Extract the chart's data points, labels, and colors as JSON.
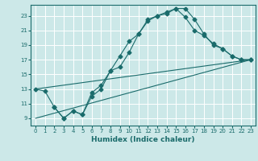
{
  "xlabel": "Humidex (Indice chaleur)",
  "bg_color": "#cce8e8",
  "grid_color": "#ffffff",
  "line_color": "#1a6b6b",
  "xlim": [
    -0.5,
    23.5
  ],
  "ylim": [
    8.0,
    24.5
  ],
  "xticks": [
    0,
    1,
    2,
    3,
    4,
    5,
    6,
    7,
    8,
    9,
    10,
    11,
    12,
    13,
    14,
    15,
    16,
    17,
    18,
    19,
    20,
    21,
    22,
    23
  ],
  "yticks": [
    9,
    11,
    13,
    15,
    17,
    19,
    21,
    23
  ],
  "line1_x": [
    0,
    1,
    2,
    3,
    4,
    5,
    6,
    7,
    8,
    9,
    10,
    11,
    12,
    13,
    14,
    15,
    16,
    17,
    18,
    19,
    20,
    21,
    22,
    23
  ],
  "line1_y": [
    13.0,
    12.7,
    10.5,
    9.0,
    10.0,
    9.5,
    12.5,
    13.5,
    15.5,
    17.5,
    19.5,
    20.5,
    22.5,
    23.0,
    23.5,
    24.0,
    22.8,
    21.0,
    20.3,
    19.2,
    18.5,
    17.5,
    17.0,
    17.0
  ],
  "line2_x": [
    2,
    3,
    4,
    5,
    6,
    7,
    8,
    9,
    10,
    11,
    12,
    13,
    14,
    15,
    16,
    17,
    18,
    19,
    20,
    21,
    22,
    23
  ],
  "line2_y": [
    10.5,
    9.0,
    10.0,
    9.5,
    12.0,
    13.0,
    15.5,
    16.0,
    18.0,
    20.5,
    22.3,
    23.0,
    23.3,
    24.0,
    24.0,
    22.5,
    20.5,
    19.0,
    18.5,
    17.5,
    17.0,
    17.0
  ],
  "line3_x": [
    0,
    23
  ],
  "line3_y": [
    9.0,
    17.0
  ],
  "line4_x": [
    0,
    23
  ],
  "line4_y": [
    13.0,
    17.0
  ]
}
